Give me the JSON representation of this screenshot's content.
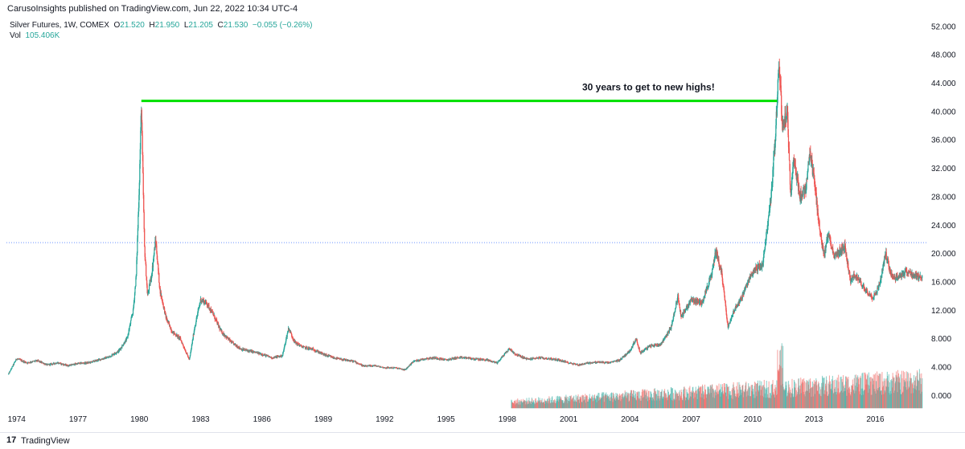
{
  "header": {
    "publish_line": "CarusoInsights published on TradingView.com, Jun 22, 2022 10:34 UTC-4"
  },
  "legend": {
    "symbol": "Silver Futures, 1W, COMEX",
    "o_label": "O",
    "o_value": "21.520",
    "h_label": "H",
    "h_value": "21.950",
    "l_label": "L",
    "l_value": "21.205",
    "c_label": "C",
    "c_value": "21.530",
    "change": "−0.055 (−0.26%)",
    "vol_label": "Vol",
    "vol_value": "105.406K"
  },
  "footer": {
    "logo_glyph": "17",
    "brand": "TradingView"
  },
  "colors": {
    "up": "#26a69a",
    "down": "#ef5350",
    "annotation_line": "#00e000",
    "price_line": "#2962ff",
    "volume_up": "#26a69a",
    "volume_down": "#ef5350"
  },
  "chart_data": {
    "type": "candlestick",
    "annotation": {
      "text": "30 years to get to new highs!",
      "level": 41.5,
      "from_year": 1980.1,
      "to_year": 2011.2
    },
    "current_price": 21.53,
    "ylim": [
      -2,
      53
    ],
    "xlim": [
      1973.5,
      2018.5
    ],
    "y_ticks": [
      "0.000",
      "4.000",
      "8.000",
      "12.000",
      "16.000",
      "20.000",
      "24.000",
      "28.000",
      "32.000",
      "36.000",
      "40.000",
      "44.000",
      "48.000",
      "52.000"
    ],
    "x_ticks": [
      "1974",
      "1977",
      "1980",
      "1983",
      "1986",
      "1989",
      "1992",
      "1995",
      "1998",
      "2001",
      "2004",
      "2007",
      "2010",
      "2013",
      "2016"
    ],
    "price_path": [
      [
        1973.6,
        3.0
      ],
      [
        1974.0,
        5.2
      ],
      [
        1974.5,
        4.6
      ],
      [
        1975.0,
        4.9
      ],
      [
        1975.5,
        4.3
      ],
      [
        1976.0,
        4.6
      ],
      [
        1976.5,
        4.2
      ],
      [
        1977.0,
        4.5
      ],
      [
        1977.5,
        4.6
      ],
      [
        1978.0,
        5.0
      ],
      [
        1978.5,
        5.4
      ],
      [
        1979.0,
        6.3
      ],
      [
        1979.4,
        8.0
      ],
      [
        1979.7,
        12.0
      ],
      [
        1979.85,
        17.0
      ],
      [
        1980.0,
        30.0
      ],
      [
        1980.1,
        41.0
      ],
      [
        1980.25,
        21.0
      ],
      [
        1980.4,
        14.0
      ],
      [
        1980.6,
        17.0
      ],
      [
        1980.8,
        22.0
      ],
      [
        1981.0,
        15.0
      ],
      [
        1981.3,
        11.0
      ],
      [
        1981.6,
        9.0
      ],
      [
        1982.0,
        8.0
      ],
      [
        1982.45,
        5.0
      ],
      [
        1982.7,
        9.5
      ],
      [
        1983.0,
        13.5
      ],
      [
        1983.3,
        13.0
      ],
      [
        1983.6,
        11.5
      ],
      [
        1984.0,
        9.0
      ],
      [
        1984.5,
        7.5
      ],
      [
        1985.0,
        6.5
      ],
      [
        1985.5,
        6.2
      ],
      [
        1986.0,
        5.8
      ],
      [
        1986.5,
        5.3
      ],
      [
        1987.0,
        5.6
      ],
      [
        1987.3,
        9.5
      ],
      [
        1987.6,
        7.5
      ],
      [
        1988.0,
        6.8
      ],
      [
        1988.5,
        6.5
      ],
      [
        1989.0,
        5.8
      ],
      [
        1989.5,
        5.3
      ],
      [
        1990.0,
        5.0
      ],
      [
        1990.5,
        4.8
      ],
      [
        1991.0,
        4.1
      ],
      [
        1991.5,
        4.2
      ],
      [
        1992.0,
        3.9
      ],
      [
        1992.5,
        3.9
      ],
      [
        1993.0,
        3.6
      ],
      [
        1993.4,
        4.8
      ],
      [
        1994.0,
        5.2
      ],
      [
        1994.5,
        5.3
      ],
      [
        1995.0,
        5.0
      ],
      [
        1995.5,
        5.3
      ],
      [
        1996.0,
        5.3
      ],
      [
        1996.5,
        5.1
      ],
      [
        1997.0,
        5.0
      ],
      [
        1997.5,
        4.6
      ],
      [
        1998.1,
        6.6
      ],
      [
        1998.4,
        5.8
      ],
      [
        1999.0,
        5.1
      ],
      [
        1999.5,
        5.3
      ],
      [
        2000.0,
        5.2
      ],
      [
        2000.5,
        5.0
      ],
      [
        2001.0,
        4.6
      ],
      [
        2001.5,
        4.3
      ],
      [
        2002.0,
        4.6
      ],
      [
        2002.5,
        4.7
      ],
      [
        2003.0,
        4.6
      ],
      [
        2003.5,
        5.0
      ],
      [
        2004.0,
        6.3
      ],
      [
        2004.3,
        8.0
      ],
      [
        2004.5,
        6.0
      ],
      [
        2005.0,
        7.0
      ],
      [
        2005.5,
        7.2
      ],
      [
        2006.0,
        9.5
      ],
      [
        2006.35,
        14.0
      ],
      [
        2006.5,
        11.0
      ],
      [
        2007.0,
        13.5
      ],
      [
        2007.5,
        13.0
      ],
      [
        2008.0,
        17.0
      ],
      [
        2008.2,
        20.5
      ],
      [
        2008.5,
        17.0
      ],
      [
        2008.8,
        9.5
      ],
      [
        2009.0,
        11.5
      ],
      [
        2009.5,
        14.0
      ],
      [
        2010.0,
        17.5
      ],
      [
        2010.5,
        18.5
      ],
      [
        2010.9,
        28.0
      ],
      [
        2011.1,
        36.0
      ],
      [
        2011.3,
        47.0
      ],
      [
        2011.45,
        38.0
      ],
      [
        2011.7,
        40.0
      ],
      [
        2011.85,
        28.0
      ],
      [
        2012.0,
        34.0
      ],
      [
        2012.3,
        28.0
      ],
      [
        2012.6,
        29.0
      ],
      [
        2012.8,
        34.0
      ],
      [
        2013.0,
        30.5
      ],
      [
        2013.3,
        23.0
      ],
      [
        2013.5,
        19.5
      ],
      [
        2013.7,
        23.0
      ],
      [
        2014.0,
        19.5
      ],
      [
        2014.5,
        21.0
      ],
      [
        2014.8,
        16.0
      ],
      [
        2015.0,
        17.0
      ],
      [
        2015.5,
        15.0
      ],
      [
        2015.9,
        13.8
      ],
      [
        2016.2,
        15.5
      ],
      [
        2016.5,
        20.0
      ],
      [
        2016.8,
        17.0
      ],
      [
        2017.0,
        16.5
      ],
      [
        2017.5,
        17.5
      ],
      [
        2018.0,
        16.8
      ],
      [
        2018.3,
        16.5
      ]
    ]
  }
}
